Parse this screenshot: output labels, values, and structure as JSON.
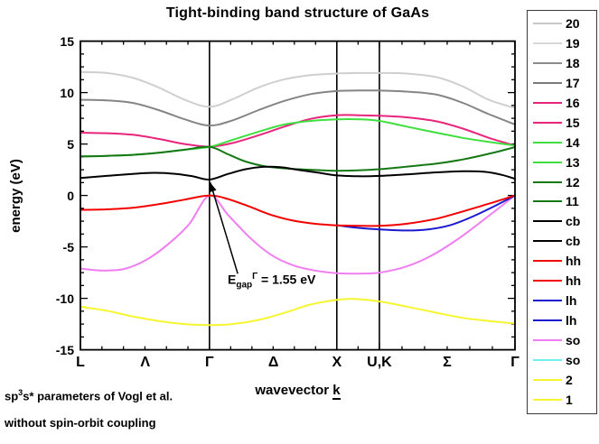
{
  "title": "Tight-binding band structure of GaAs",
  "xlabel": {
    "pre": "wavevector ",
    "k": "k"
  },
  "footnotes": {
    "pre": "sp",
    "sup": "3",
    "rest": "s* parameters of Vogl et al.",
    "line2": "without spin-orbit coupling"
  },
  "chart_data": {
    "type": "line",
    "title": "Tight-binding band structure of GaAs",
    "xlabel": "wavevector k",
    "ylabel": "energy (eV)",
    "ylim": [
      -15,
      15
    ],
    "yticks": [
      15,
      10,
      5,
      0,
      -5,
      -10,
      -15
    ],
    "y_minor_step": 1.25,
    "grid": false,
    "legend_position": "outside-right",
    "xticks": [
      {
        "label": "L",
        "f": 0.0
      },
      {
        "label": "Λ",
        "f": 0.149
      },
      {
        "label": "Γ",
        "f": 0.297
      },
      {
        "label": "Δ",
        "f": 0.444
      },
      {
        "label": "X",
        "f": 0.59
      },
      {
        "label": "U,K",
        "f": 0.688
      },
      {
        "label": "Σ",
        "f": 0.844
      },
      {
        "label": "Γ",
        "f": 1.0
      }
    ],
    "vlines": [
      0.297,
      0.59,
      0.688
    ],
    "x_minor_segments": [
      [
        0.0,
        0.297,
        6
      ],
      [
        0.297,
        0.59,
        6
      ],
      [
        0.59,
        0.688,
        2
      ],
      [
        0.688,
        1.0,
        6
      ]
    ],
    "annotation": {
      "symbol": "E",
      "subscript": "gap",
      "superscript": "Γ",
      "value": " = 1.55 eV",
      "arrow_from": [
        0.362,
        -7.6
      ],
      "arrow_to": [
        0.299,
        1.25
      ]
    },
    "series": [
      {
        "name": "band-19-20",
        "legend": "20 / 19",
        "color": "#cfcfcf",
        "points": [
          [
            0,
            12.0
          ],
          [
            0.06,
            11.9
          ],
          [
            0.12,
            11.45
          ],
          [
            0.18,
            10.5
          ],
          [
            0.24,
            9.3
          ],
          [
            0.297,
            8.62
          ],
          [
            0.35,
            9.35
          ],
          [
            0.41,
            10.5
          ],
          [
            0.47,
            11.3
          ],
          [
            0.53,
            11.7
          ],
          [
            0.59,
            11.85
          ],
          [
            0.64,
            11.9
          ],
          [
            0.688,
            11.9
          ],
          [
            0.75,
            11.85
          ],
          [
            0.82,
            11.5
          ],
          [
            0.88,
            10.6
          ],
          [
            0.94,
            9.3
          ],
          [
            1.0,
            8.5
          ]
        ]
      },
      {
        "name": "band-17-18",
        "legend": "18 / 17",
        "color": "#858585",
        "points": [
          [
            0,
            9.3
          ],
          [
            0.06,
            9.25
          ],
          [
            0.12,
            9.0
          ],
          [
            0.18,
            8.3
          ],
          [
            0.24,
            7.4
          ],
          [
            0.297,
            6.8
          ],
          [
            0.35,
            7.3
          ],
          [
            0.41,
            8.3
          ],
          [
            0.47,
            9.2
          ],
          [
            0.53,
            9.85
          ],
          [
            0.59,
            10.15
          ],
          [
            0.64,
            10.2
          ],
          [
            0.688,
            10.2
          ],
          [
            0.75,
            10.1
          ],
          [
            0.82,
            9.8
          ],
          [
            0.88,
            9.0
          ],
          [
            0.94,
            7.9
          ],
          [
            1.0,
            6.9
          ]
        ]
      },
      {
        "name": "band-15-16",
        "legend": "16 / 15",
        "color": "#e8257d",
        "points": [
          [
            0,
            6.1
          ],
          [
            0.06,
            6.05
          ],
          [
            0.12,
            5.9
          ],
          [
            0.18,
            5.5
          ],
          [
            0.24,
            5.0
          ],
          [
            0.297,
            4.75
          ],
          [
            0.35,
            5.1
          ],
          [
            0.41,
            5.85
          ],
          [
            0.47,
            6.7
          ],
          [
            0.53,
            7.45
          ],
          [
            0.59,
            7.8
          ],
          [
            0.64,
            7.8
          ],
          [
            0.688,
            7.75
          ],
          [
            0.75,
            7.6
          ],
          [
            0.82,
            7.2
          ],
          [
            0.88,
            6.5
          ],
          [
            0.94,
            5.6
          ],
          [
            1.0,
            4.85
          ]
        ]
      },
      {
        "name": "band-13-14",
        "legend": "14 / 13",
        "color": "#3fdf3f",
        "points": [
          [
            0,
            3.8
          ],
          [
            0.06,
            3.85
          ],
          [
            0.12,
            3.95
          ],
          [
            0.18,
            4.15
          ],
          [
            0.24,
            4.45
          ],
          [
            0.297,
            4.72
          ],
          [
            0.35,
            5.4
          ],
          [
            0.41,
            6.2
          ],
          [
            0.47,
            6.9
          ],
          [
            0.53,
            7.25
          ],
          [
            0.59,
            7.4
          ],
          [
            0.64,
            7.4
          ],
          [
            0.688,
            7.25
          ],
          [
            0.75,
            6.7
          ],
          [
            0.82,
            6.1
          ],
          [
            0.88,
            5.6
          ],
          [
            0.94,
            5.2
          ],
          [
            1.0,
            4.85
          ]
        ]
      },
      {
        "name": "band-11-12",
        "legend": "12 / 11",
        "color": "#157815",
        "points": [
          [
            0,
            3.8
          ],
          [
            0.06,
            3.85
          ],
          [
            0.12,
            3.95
          ],
          [
            0.18,
            4.15
          ],
          [
            0.24,
            4.45
          ],
          [
            0.297,
            4.72
          ],
          [
            0.34,
            4.0
          ],
          [
            0.38,
            3.3
          ],
          [
            0.43,
            2.8
          ],
          [
            0.48,
            2.6
          ],
          [
            0.53,
            2.5
          ],
          [
            0.59,
            2.4
          ],
          [
            0.64,
            2.45
          ],
          [
            0.688,
            2.55
          ],
          [
            0.75,
            2.8
          ],
          [
            0.82,
            3.1
          ],
          [
            0.88,
            3.5
          ],
          [
            0.94,
            4.05
          ],
          [
            1.0,
            4.7
          ]
        ]
      },
      {
        "name": "band-1-2",
        "legend": "2 / 1",
        "color": "#f6f630",
        "points": [
          [
            0,
            -10.8
          ],
          [
            0.06,
            -11.2
          ],
          [
            0.12,
            -11.75
          ],
          [
            0.18,
            -12.2
          ],
          [
            0.24,
            -12.5
          ],
          [
            0.297,
            -12.6
          ],
          [
            0.35,
            -12.5
          ],
          [
            0.41,
            -12.1
          ],
          [
            0.47,
            -11.4
          ],
          [
            0.53,
            -10.6
          ],
          [
            0.59,
            -10.15
          ],
          [
            0.63,
            -10.05
          ],
          [
            0.688,
            -10.3
          ],
          [
            0.75,
            -10.8
          ],
          [
            0.82,
            -11.4
          ],
          [
            0.88,
            -11.9
          ],
          [
            0.94,
            -12.2
          ],
          [
            1.0,
            -12.45
          ]
        ]
      },
      {
        "name": "band-so",
        "legend": "so / so",
        "color": "#f07ef0",
        "points": [
          [
            0,
            -7.1
          ],
          [
            0.05,
            -7.3
          ],
          [
            0.1,
            -7.15
          ],
          [
            0.15,
            -6.3
          ],
          [
            0.2,
            -4.8
          ],
          [
            0.25,
            -2.8
          ],
          [
            0.297,
            0.0
          ],
          [
            0.34,
            -1.9
          ],
          [
            0.39,
            -4.1
          ],
          [
            0.44,
            -5.8
          ],
          [
            0.49,
            -6.8
          ],
          [
            0.54,
            -7.3
          ],
          [
            0.59,
            -7.55
          ],
          [
            0.64,
            -7.6
          ],
          [
            0.688,
            -7.5
          ],
          [
            0.75,
            -6.9
          ],
          [
            0.81,
            -5.8
          ],
          [
            0.87,
            -4.2
          ],
          [
            0.93,
            -2.3
          ],
          [
            1.0,
            0.0
          ]
        ]
      },
      {
        "name": "band-lh",
        "legend": "lh / lh",
        "color": "#1a1ace",
        "points": [
          [
            0.59,
            -2.9
          ],
          [
            0.64,
            -3.15
          ],
          [
            0.688,
            -3.3
          ],
          [
            0.75,
            -3.4
          ],
          [
            0.8,
            -3.3
          ],
          [
            0.85,
            -2.9
          ],
          [
            0.9,
            -2.1
          ],
          [
            0.95,
            -1.1
          ],
          [
            1.0,
            0.0
          ]
        ]
      },
      {
        "name": "band-hh",
        "legend": "hh / hh",
        "color": "#f20000",
        "points": [
          [
            0,
            -1.4
          ],
          [
            0.06,
            -1.35
          ],
          [
            0.12,
            -1.2
          ],
          [
            0.18,
            -0.85
          ],
          [
            0.24,
            -0.4
          ],
          [
            0.297,
            0.0
          ],
          [
            0.34,
            -0.35
          ],
          [
            0.39,
            -1.1
          ],
          [
            0.44,
            -1.9
          ],
          [
            0.49,
            -2.45
          ],
          [
            0.54,
            -2.75
          ],
          [
            0.59,
            -2.9
          ],
          [
            0.64,
            -2.95
          ],
          [
            0.688,
            -2.95
          ],
          [
            0.75,
            -2.75
          ],
          [
            0.82,
            -2.25
          ],
          [
            0.88,
            -1.55
          ],
          [
            0.94,
            -0.8
          ],
          [
            1.0,
            0.0
          ]
        ]
      },
      {
        "name": "band-cb",
        "legend": "cb / cb",
        "color": "#000000",
        "points": [
          [
            0,
            1.7
          ],
          [
            0.06,
            1.9
          ],
          [
            0.12,
            2.1
          ],
          [
            0.17,
            2.2
          ],
          [
            0.22,
            2.1
          ],
          [
            0.26,
            1.85
          ],
          [
            0.297,
            1.55
          ],
          [
            0.34,
            2.1
          ],
          [
            0.38,
            2.55
          ],
          [
            0.42,
            2.78
          ],
          [
            0.46,
            2.75
          ],
          [
            0.5,
            2.5
          ],
          [
            0.55,
            2.2
          ],
          [
            0.59,
            1.95
          ],
          [
            0.64,
            1.87
          ],
          [
            0.688,
            1.9
          ],
          [
            0.75,
            2.05
          ],
          [
            0.82,
            2.25
          ],
          [
            0.88,
            2.35
          ],
          [
            0.93,
            2.3
          ],
          [
            0.97,
            2.0
          ],
          [
            1.0,
            1.62
          ]
        ]
      }
    ]
  },
  "legend": {
    "entries": [
      {
        "label": "20",
        "color": "#c8c8c8"
      },
      {
        "label": "19",
        "color": "#d8d8d8"
      },
      {
        "label": "18",
        "color": "#8c8c8c"
      },
      {
        "label": "17",
        "color": "#7a7a7a"
      },
      {
        "label": "16",
        "color": "#e8257d"
      },
      {
        "label": "15",
        "color": "#e8257d"
      },
      {
        "label": "14",
        "color": "#3fdf3f"
      },
      {
        "label": "13",
        "color": "#3fdf3f"
      },
      {
        "label": "12",
        "color": "#157815"
      },
      {
        "label": "11",
        "color": "#157815"
      },
      {
        "label": "cb",
        "color": "#000000"
      },
      {
        "label": "cb",
        "color": "#000000"
      },
      {
        "label": "hh",
        "color": "#f20000"
      },
      {
        "label": "hh",
        "color": "#f20000"
      },
      {
        "label": "lh",
        "color": "#1a1ace"
      },
      {
        "label": "lh",
        "color": "#1a1ace"
      },
      {
        "label": "so",
        "color": "#f07ef0"
      },
      {
        "label": "so",
        "color": "#70f0f0"
      },
      {
        "label": "2",
        "color": "#f6f630"
      },
      {
        "label": "1",
        "color": "#f6f630"
      }
    ]
  }
}
